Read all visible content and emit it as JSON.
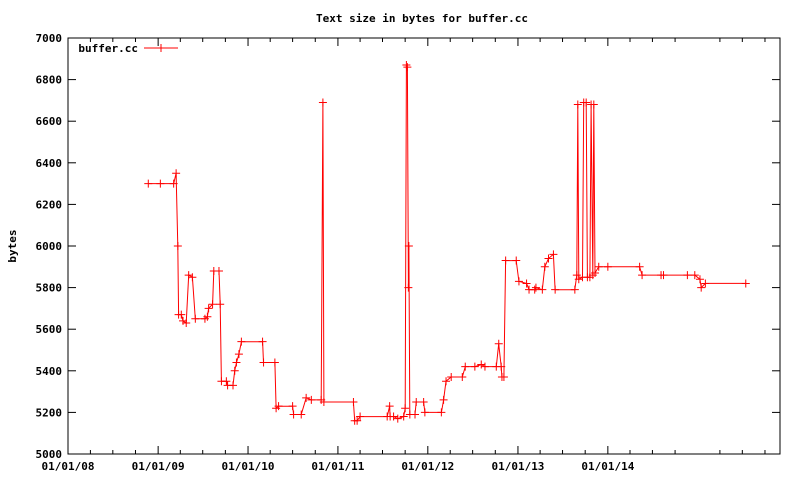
{
  "chart_data": {
    "type": "line",
    "title": "Text size in bytes for buffer.cc",
    "xlabel": "",
    "ylabel": "bytes",
    "x_axis_type": "date",
    "xlim": [
      "2008-01-01",
      "2015-12-01"
    ],
    "ylim": [
      5000,
      7000
    ],
    "x_ticks": [
      {
        "date": "2008-01-01",
        "label": "01/01/08"
      },
      {
        "date": "2009-01-01",
        "label": "01/01/09"
      },
      {
        "date": "2010-01-01",
        "label": "01/01/10"
      },
      {
        "date": "2011-01-01",
        "label": "01/01/11"
      },
      {
        "date": "2012-01-01",
        "label": "01/01/12"
      },
      {
        "date": "2013-01-01",
        "label": "01/01/13"
      },
      {
        "date": "2014-01-01",
        "label": "01/01/14"
      }
    ],
    "y_ticks": [
      5000,
      5200,
      5400,
      5600,
      5800,
      6000,
      6200,
      6400,
      6600,
      6800,
      7000
    ],
    "grid": false,
    "legend_position": "top-left",
    "series": [
      {
        "name": "buffer.cc",
        "color": "#ff0000",
        "points": [
          [
            "2008-11-22",
            6300
          ],
          [
            "2009-01-10",
            6300
          ],
          [
            "2009-03-05",
            6300
          ],
          [
            "2009-03-15",
            6350
          ],
          [
            "2009-03-22",
            6000
          ],
          [
            "2009-03-25",
            5670
          ],
          [
            "2009-04-05",
            5670
          ],
          [
            "2009-04-12",
            5640
          ],
          [
            "2009-04-25",
            5630
          ],
          [
            "2009-05-05",
            5860
          ],
          [
            "2009-05-20",
            5850
          ],
          [
            "2009-06-01",
            5650
          ],
          [
            "2009-07-10",
            5650
          ],
          [
            "2009-07-20",
            5660
          ],
          [
            "2009-07-25",
            5700
          ],
          [
            "2009-08-10",
            5720
          ],
          [
            "2009-08-15",
            5880
          ],
          [
            "2009-09-05",
            5880
          ],
          [
            "2009-09-10",
            5720
          ],
          [
            "2009-09-15",
            5350
          ],
          [
            "2009-10-05",
            5350
          ],
          [
            "2009-10-10",
            5330
          ],
          [
            "2009-11-01",
            5330
          ],
          [
            "2009-11-08",
            5400
          ],
          [
            "2009-11-15",
            5440
          ],
          [
            "2009-11-25",
            5480
          ],
          [
            "2009-12-05",
            5540
          ],
          [
            "2010-03-01",
            5540
          ],
          [
            "2010-03-05",
            5440
          ],
          [
            "2010-04-20",
            5440
          ],
          [
            "2010-04-25",
            5220
          ],
          [
            "2010-05-05",
            5230
          ],
          [
            "2010-07-01",
            5230
          ],
          [
            "2010-07-05",
            5190
          ],
          [
            "2010-08-05",
            5190
          ],
          [
            "2010-08-25",
            5270
          ],
          [
            "2010-09-15",
            5260
          ],
          [
            "2010-10-25",
            5260
          ],
          [
            "2010-11-01",
            6690
          ],
          [
            "2010-11-05",
            5250
          ],
          [
            "2011-03-05",
            5250
          ],
          [
            "2011-03-10",
            5160
          ],
          [
            "2011-03-20",
            5160
          ],
          [
            "2011-04-01",
            5180
          ],
          [
            "2011-07-20",
            5180
          ],
          [
            "2011-07-30",
            5230
          ],
          [
            "2011-08-01",
            5180
          ],
          [
            "2011-08-15",
            5180
          ],
          [
            "2011-09-01",
            5170
          ],
          [
            "2011-09-25",
            5180
          ],
          [
            "2011-10-01",
            5220
          ],
          [
            "2011-10-06",
            6870
          ],
          [
            "2011-10-10",
            6860
          ],
          [
            "2011-10-14",
            5800
          ],
          [
            "2011-10-16",
            6000
          ],
          [
            "2011-10-20",
            5190
          ],
          [
            "2011-11-10",
            5190
          ],
          [
            "2011-11-15",
            5250
          ],
          [
            "2011-12-15",
            5250
          ],
          [
            "2011-12-20",
            5200
          ],
          [
            "2012-02-25",
            5200
          ],
          [
            "2012-03-05",
            5260
          ],
          [
            "2012-03-15",
            5350
          ],
          [
            "2012-04-05",
            5370
          ],
          [
            "2012-05-20",
            5370
          ],
          [
            "2012-06-01",
            5420
          ],
          [
            "2012-07-10",
            5420
          ],
          [
            "2012-08-05",
            5430
          ],
          [
            "2012-08-20",
            5420
          ],
          [
            "2012-10-05",
            5420
          ],
          [
            "2012-10-15",
            5530
          ],
          [
            "2012-10-25",
            5420
          ],
          [
            "2012-10-28",
            5370
          ],
          [
            "2012-11-05",
            5370
          ],
          [
            "2012-11-12",
            5930
          ],
          [
            "2012-12-25",
            5930
          ],
          [
            "2013-01-05",
            5830
          ],
          [
            "2013-02-05",
            5820
          ],
          [
            "2013-02-15",
            5790
          ],
          [
            "2013-03-10",
            5790
          ],
          [
            "2013-03-15",
            5800
          ],
          [
            "2013-04-10",
            5790
          ],
          [
            "2013-04-20",
            5900
          ],
          [
            "2013-05-05",
            5940
          ],
          [
            "2013-05-25",
            5960
          ],
          [
            "2013-06-01",
            5790
          ],
          [
            "2013-08-20",
            5790
          ],
          [
            "2013-08-28",
            5860
          ],
          [
            "2013-09-01",
            6680
          ],
          [
            "2013-09-05",
            5840
          ],
          [
            "2013-09-20",
            5850
          ],
          [
            "2013-09-25",
            6690
          ],
          [
            "2013-10-05",
            6690
          ],
          [
            "2013-10-10",
            5850
          ],
          [
            "2013-10-20",
            5850
          ],
          [
            "2013-10-25",
            6680
          ],
          [
            "2013-11-01",
            5860
          ],
          [
            "2013-11-05",
            6680
          ],
          [
            "2013-11-10",
            5870
          ],
          [
            "2013-11-25",
            5900
          ],
          [
            "2014-01-01",
            5900
          ],
          [
            "2014-05-10",
            5900
          ],
          [
            "2014-05-20",
            5860
          ],
          [
            "2014-08-05",
            5860
          ],
          [
            "2014-08-15",
            5860
          ],
          [
            "2014-11-20",
            5860
          ],
          [
            "2014-12-20",
            5860
          ],
          [
            "2015-01-10",
            5840
          ],
          [
            "2015-01-15",
            5800
          ],
          [
            "2015-02-01",
            5820
          ],
          [
            "2015-07-15",
            5820
          ]
        ]
      }
    ]
  }
}
